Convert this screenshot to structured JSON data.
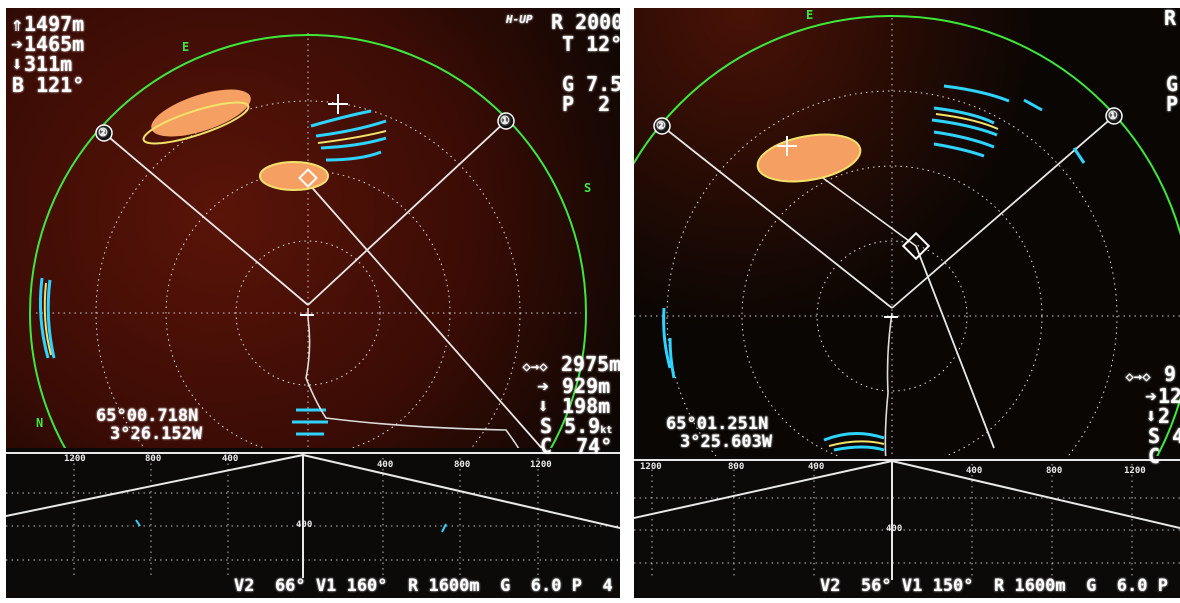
{
  "left": {
    "header": {
      "depth1_icon": "up-arrow-icon",
      "depth1": "1497m",
      "depth2_icon": "right-arrow-icon",
      "depth2": "1465m",
      "depth3_icon": "down-arrow-icon",
      "depth3": "311m",
      "bearing": "B 121°",
      "mode": "H-UP",
      "range": "R 2000m",
      "tilt": "T 12°",
      "gain": "G 7.5",
      "pulse": "P  2"
    },
    "compass": [
      "E",
      "S",
      "N"
    ],
    "markers": [
      "②",
      "①"
    ],
    "position": {
      "lat": "65°00.718N",
      "lon": "3°26.152W"
    },
    "target_info": {
      "dist_icon": "marker-distance-icon",
      "dist": "2975m",
      "horiz_icon": "right-arrow-icon",
      "horiz": "929m",
      "vert_icon": "down-arrow-icon",
      "vert": "198m",
      "speed_label": "S",
      "speed": "5.9",
      "speed_unit": "kt",
      "course_label": "C",
      "course": "74°"
    },
    "scale_labels": [
      "1200",
      "800",
      "400",
      "",
      "400",
      "800",
      "1200"
    ],
    "center_depth": "400",
    "bottom_status": "V2  66° V1 160°  R 1600m  G  6.0 P  4"
  },
  "right": {
    "header": {
      "range": "R",
      "gain": "G",
      "pulse": "P"
    },
    "compass": [
      "E"
    ],
    "markers": [
      "②",
      "①"
    ],
    "position": {
      "lat": "65°01.251N",
      "lon": "3°25.603W"
    },
    "target_info": {
      "dist_icon": "marker-distance-icon",
      "dist": "9",
      "horiz_icon": "right-arrow-icon",
      "horiz": "12",
      "vert_icon": "down-arrow-icon",
      "vert": "2",
      "speed_label": "S",
      "speed": "4",
      "course_label": "C"
    },
    "scale_labels": [
      "1200",
      "800",
      "400",
      "",
      "400",
      "800",
      "1200"
    ],
    "center_depth": "400",
    "bottom_status": "V2  56° V1 150°  R 1600m  G  6.0 P  4"
  },
  "colors": {
    "ring": "#3ee83a",
    "school": "#f5a062",
    "echo_cyan": "#2fd3ff",
    "echo_yellow": "#f2e26a",
    "bg": "#0a0603",
    "seabed": "#3a0d06"
  }
}
